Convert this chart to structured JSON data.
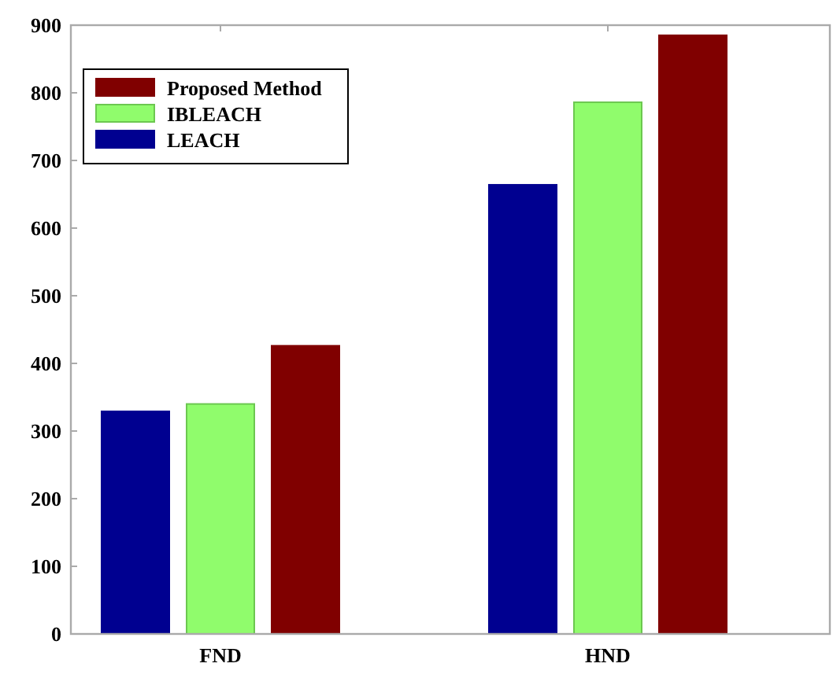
{
  "chart_data": {
    "type": "bar",
    "categories": [
      "FND",
      "HND"
    ],
    "series": [
      {
        "name": "LEACH",
        "color": "#000090",
        "values": [
          329,
          664
        ]
      },
      {
        "name": "IBLEACH",
        "color": "#90fc6c",
        "values": [
          340,
          786
        ]
      },
      {
        "name": "Proposed Method",
        "color": "#800000",
        "values": [
          426,
          885
        ]
      }
    ],
    "ylim": [
      0,
      900
    ],
    "yticks": [
      0,
      100,
      200,
      300,
      400,
      500,
      600,
      700,
      800,
      900
    ],
    "grid": false,
    "legend": "top left"
  }
}
